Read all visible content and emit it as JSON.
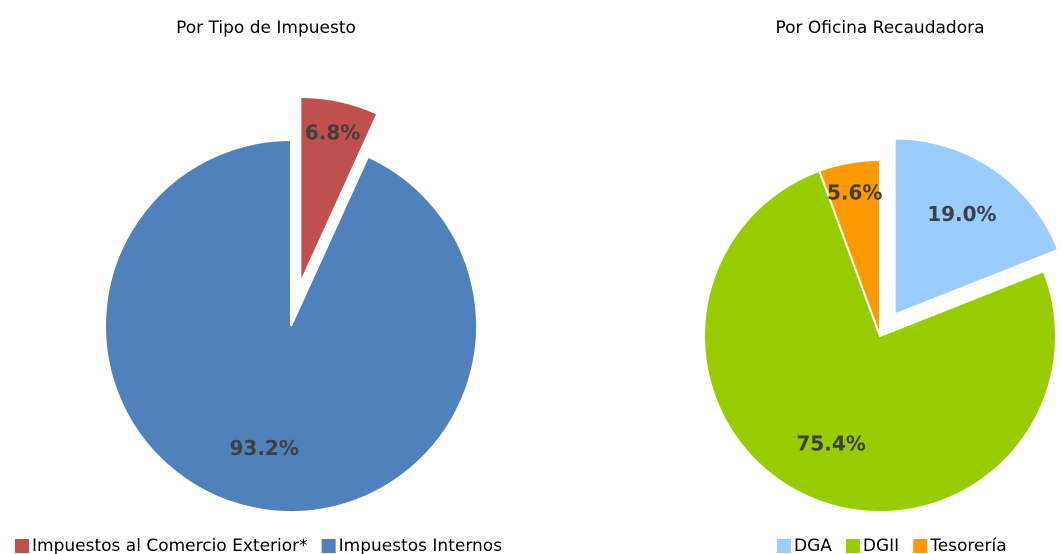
{
  "chart_data": [
    {
      "type": "pie",
      "title": "Por Tipo de Impuesto",
      "categories": [
        "Impuestos al Comercio Exterior*",
        "Impuestos Internos"
      ],
      "values": [
        6.8,
        93.2
      ],
      "value_labels": [
        "6.8%",
        "93.2%"
      ],
      "colors": [
        "#c0504d",
        "#4f81bd"
      ],
      "legend": "bottom"
    },
    {
      "type": "pie",
      "title": "Por Oficina Recaudadora",
      "categories": [
        "DGA",
        "DGII",
        "Tesorería"
      ],
      "values": [
        19.0,
        75.4,
        5.6
      ],
      "value_labels": [
        "19.0%",
        "75.4%",
        "5.6%"
      ],
      "colors": [
        "#99ccff",
        "#99cc00",
        "#ff9900"
      ],
      "legend": "bottom"
    }
  ]
}
